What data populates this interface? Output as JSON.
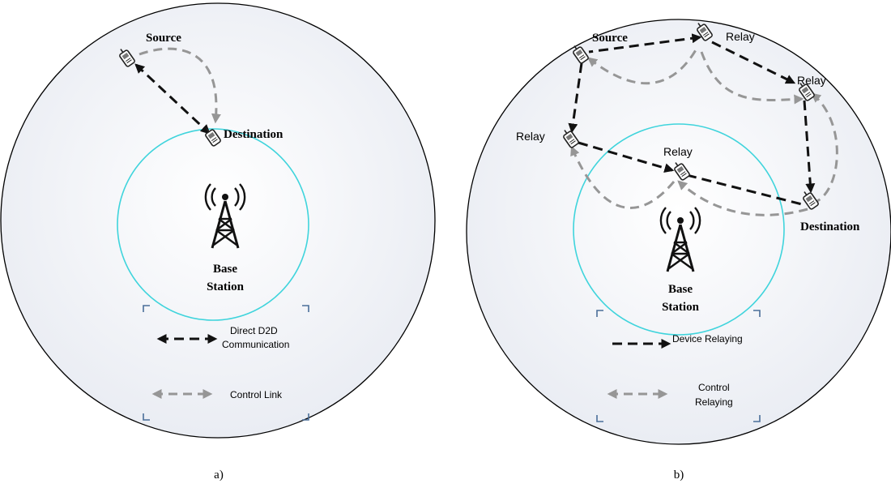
{
  "panel_a": {
    "caption": "a)",
    "source_label": "Source",
    "destination_label": "Destination",
    "base_station_line1": "Base",
    "base_station_line2": "Station",
    "legend": {
      "direct_line1": "Direct D2D",
      "direct_line2": "Communication",
      "control": "Control Link"
    }
  },
  "panel_b": {
    "caption": "b)",
    "source_label": "Source",
    "relay_label": "Relay",
    "destination_label": "Destination",
    "base_station_line1": "Base",
    "base_station_line2": "Station",
    "legend": {
      "device_relaying": "Device Relaying",
      "control_line1": "Control",
      "control_line2": "Relaying"
    }
  },
  "colors": {
    "outer_circle": "#000000",
    "inner_circle": "#3fd4dc",
    "d2d_link": "#111111",
    "control_link": "#969696",
    "legend_bracket": "#4a6e99",
    "background_gradient": "#e8ebf2"
  },
  "icons": {
    "device": "phone-icon",
    "base_station": "cell-tower-icon"
  }
}
